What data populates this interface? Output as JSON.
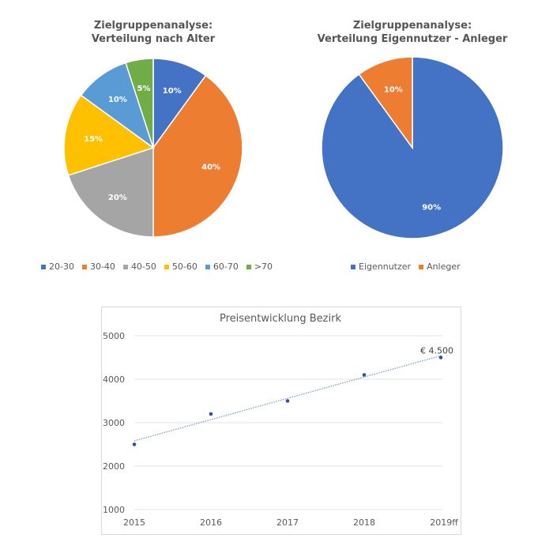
{
  "chart_data": [
    {
      "type": "pie",
      "title": "Zielgruppenanalyse:\nVerteilung nach Alter",
      "title_lines": [
        "Zielgruppenanalyse:",
        "Verteilung nach Alter"
      ],
      "categories": [
        "20-30",
        "30-40",
        "40-50",
        "50-60",
        "60-70",
        ">70"
      ],
      "values": [
        10,
        40,
        20,
        15,
        10,
        5
      ],
      "data_labels": [
        "10%",
        "40%",
        "20%",
        "15%",
        "10%",
        "5%"
      ],
      "colors": [
        "#4472c4",
        "#ed7d31",
        "#a5a5a5",
        "#ffc000",
        "#5b9bd5",
        "#70ad47"
      ],
      "legend": "bottom"
    },
    {
      "type": "pie",
      "title_lines": [
        "Zielgruppenanalyse:",
        "Verteilung Eigennutzer - Anleger"
      ],
      "categories": [
        "Eigennutzer",
        "Anleger"
      ],
      "values": [
        90,
        10
      ],
      "data_labels": [
        "90%",
        "10%"
      ],
      "colors": [
        "#4472c4",
        "#ed7d31"
      ],
      "legend": "bottom"
    },
    {
      "type": "scatter",
      "title": "Preisentwicklung Bezirk",
      "categories": [
        "2015",
        "2016",
        "2017",
        "2018",
        "2019ff"
      ],
      "values": [
        2500,
        3200,
        3500,
        4100,
        4500
      ],
      "trendline": "linear",
      "annotation": "€ 4.500",
      "ylim": [
        1000,
        5000
      ],
      "yticks": [
        "5000",
        "4000",
        "3000",
        "2000",
        "1000"
      ],
      "grid": true,
      "color": "#2f4f9f"
    }
  ]
}
